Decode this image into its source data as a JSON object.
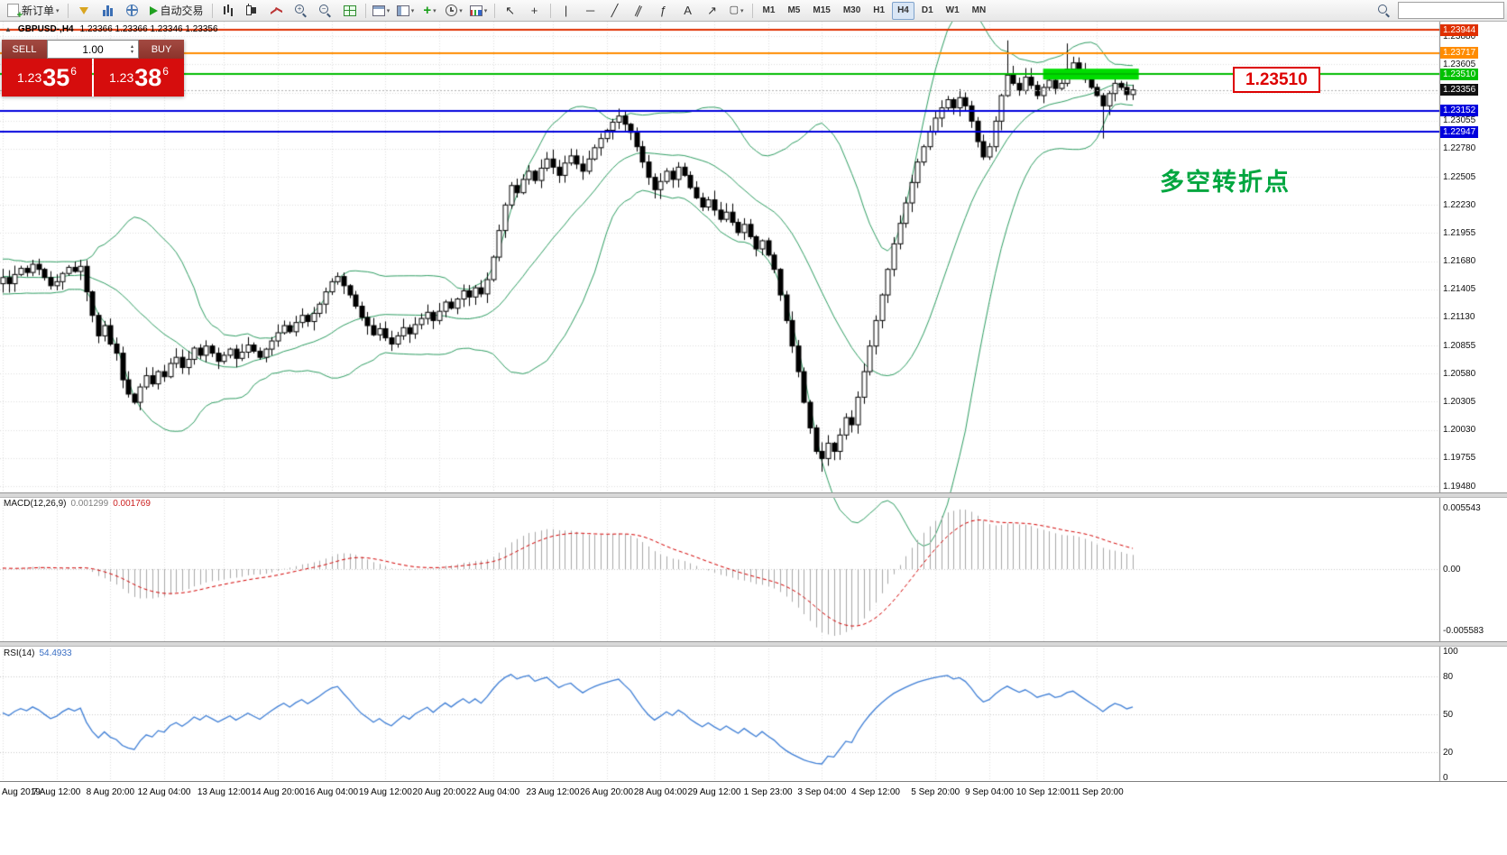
{
  "toolbar": {
    "new_order": "新订单",
    "autotrade": "自动交易",
    "search_value": "",
    "timeframes": [
      "M1",
      "M5",
      "M15",
      "M30",
      "H1",
      "H4",
      "D1",
      "W1",
      "MN"
    ],
    "active_timeframe": "H4"
  },
  "symbol_bar": {
    "collapse": "▲",
    "title": "GBPUSD-,H4",
    "ohlc": "1.23366 1.23366 1.23346 1.23356"
  },
  "trade_panel": {
    "sell_label": "SELL",
    "buy_label": "BUY",
    "volume": "1.00",
    "sell_price": {
      "base": "1.23",
      "big": "35",
      "sup": "6"
    },
    "buy_price": {
      "base": "1.23",
      "big": "38",
      "sup": "6"
    }
  },
  "annotations": {
    "level_label": "1.23510",
    "turning_point": "多空转折点"
  },
  "chart_data": {
    "type": "candlestick",
    "symbol": "GBPUSD-",
    "period": "H4",
    "price_range": [
      1.1948,
      1.23944
    ],
    "colors": {
      "candle_up": "#ffffff",
      "candle_down": "#000000",
      "wick": "#000000",
      "bollinger": "#2f9e63",
      "grid": "#dedede",
      "macd_hist": "#a8a8a8",
      "macd_signal": "#d40000",
      "rsi_line": "#3f7fd6",
      "bid_line": "#b0b0b0",
      "zone": "#00dd00"
    },
    "closes": [
      1.2152,
      1.2146,
      1.2155,
      1.2161,
      1.2157,
      1.2165,
      1.216,
      1.2152,
      1.2144,
      1.2148,
      1.2156,
      1.2162,
      1.2158,
      1.2163,
      1.2138,
      1.2115,
      1.2095,
      1.2105,
      1.2087,
      1.2078,
      1.2052,
      1.2038,
      1.203,
      1.2045,
      1.2056,
      1.2048,
      1.206,
      1.2055,
      1.2068,
      1.2074,
      1.2064,
      1.2072,
      1.2083,
      1.2076,
      1.2085,
      1.2078,
      1.207,
      1.2076,
      1.2082,
      1.2073,
      1.2079,
      1.2086,
      1.208,
      1.2074,
      1.2082,
      1.209,
      1.2098,
      1.2105,
      1.2099,
      1.2108,
      1.2115,
      1.2109,
      1.2117,
      1.2126,
      1.2138,
      1.2148,
      1.2153,
      1.2144,
      1.2135,
      1.2124,
      1.2113,
      1.2105,
      1.2096,
      1.2102,
      1.2093,
      1.2087,
      1.2095,
      1.2103,
      1.2097,
      1.2106,
      1.2112,
      1.2118,
      1.211,
      1.2119,
      1.2128,
      1.2122,
      1.2131,
      1.2139,
      1.2133,
      1.2142,
      1.2136,
      1.215,
      1.2172,
      1.2198,
      1.2223,
      1.2242,
      1.2235,
      1.2248,
      1.2256,
      1.2247,
      1.2259,
      1.2268,
      1.226,
      1.2252,
      1.2264,
      1.2271,
      1.2263,
      1.2256,
      1.2268,
      1.2279,
      1.2288,
      1.2296,
      1.2304,
      1.231,
      1.2302,
      1.2294,
      1.228,
      1.2265,
      1.225,
      1.2238,
      1.2246,
      1.2256,
      1.2248,
      1.226,
      1.2252,
      1.224,
      1.223,
      1.2221,
      1.2228,
      1.2218,
      1.2209,
      1.2216,
      1.2206,
      1.2196,
      1.2204,
      1.2192,
      1.218,
      1.2188,
      1.2174,
      1.216,
      1.2135,
      1.211,
      1.2085,
      1.206,
      1.203,
      1.2005,
      1.1982,
      1.1975,
      1.199,
      1.1982,
      1.1998,
      1.2015,
      1.2008,
      1.2035,
      1.206,
      1.2085,
      1.211,
      1.2135,
      1.216,
      1.2185,
      1.2205,
      1.2225,
      1.2245,
      1.2265,
      1.228,
      1.2295,
      1.2308,
      1.2318,
      1.2326,
      1.2318,
      1.2328,
      1.232,
      1.2305,
      1.2285,
      1.227,
      1.228,
      1.2305,
      1.233,
      1.235,
      1.2342,
      1.2335,
      1.2348,
      1.234,
      1.233,
      1.2338,
      1.2345,
      1.2337,
      1.2342,
      1.2356,
      1.2362,
      1.2354,
      1.2346,
      1.2338,
      1.233,
      1.232,
      1.2332,
      1.2342,
      1.2338,
      1.2331,
      1.23356
    ],
    "wick_highs": {
      "168": 1.2384,
      "178": 1.2381
    },
    "wick_lows": {
      "22": 1.2028,
      "137": 1.1962,
      "184": 1.2288
    },
    "bollinger": {
      "period": 20,
      "deviation": 2
    },
    "hlines": [
      {
        "price": 1.23944,
        "color": "#e03000",
        "label": "1.23944",
        "label_bg": "#e03000"
      },
      {
        "price": 1.23717,
        "color": "#ff8c00",
        "label": "1.23717",
        "label_bg": "#ff8c00"
      },
      {
        "price": 1.2351,
        "color": "#00bb00",
        "label": "1.23510",
        "label_bg": "#00c100"
      },
      {
        "price": 1.23152,
        "color": "#0000dd",
        "label": "1.23152",
        "label_bg": "#0000dd"
      },
      {
        "price": 1.22947,
        "color": "#0000dd",
        "label": "1.22947",
        "label_bg": "#0000dd"
      }
    ],
    "bid": {
      "price": 1.23356,
      "label": "1.23356",
      "label_bg": "#111111"
    },
    "zone": {
      "from_idx": 174,
      "to_idx": 190,
      "price": 1.2351
    },
    "y_axis_ticks": [
      "1.23880",
      "1.23605",
      "1.23330",
      "1.23055",
      "1.22780",
      "1.22505",
      "1.22230",
      "1.21955",
      "1.21680",
      "1.21405",
      "1.21130",
      "1.20855",
      "1.20580",
      "1.20305",
      "1.20030",
      "1.19755",
      "1.19480"
    ],
    "x_axis_ticks": [
      "Aug 2019",
      "7 Aug 12:00",
      "8 Aug 20:00",
      "12 Aug 04:00",
      "13 Aug 12:00",
      "14 Aug 20:00",
      "16 Aug 04:00",
      "19 Aug 12:00",
      "20 Aug 20:00",
      "22 Aug 04:00",
      "23 Aug 12:00",
      "26 Aug 20:00",
      "28 Aug 04:00",
      "29 Aug 12:00",
      "1 Sep 23:00",
      "3 Sep 04:00",
      "4 Sep 12:00",
      "5 Sep 20:00",
      "9 Sep 04:00",
      "10 Sep 12:00",
      "11 Sep 20:00"
    ],
    "macd": {
      "label": "MACD(12,26,9)",
      "values": [
        "0.001299",
        "0.001769"
      ],
      "fast": 12,
      "slow": 26,
      "signal_period": 9,
      "scale": [
        "0.005543",
        "0.00",
        "-0.005583"
      ]
    },
    "rsi": {
      "label": "RSI(14)",
      "value": "54.4933",
      "period": 14,
      "scale": [
        "100",
        "80",
        "50",
        "20",
        "0"
      ],
      "levels": [
        80,
        50,
        20
      ]
    }
  }
}
